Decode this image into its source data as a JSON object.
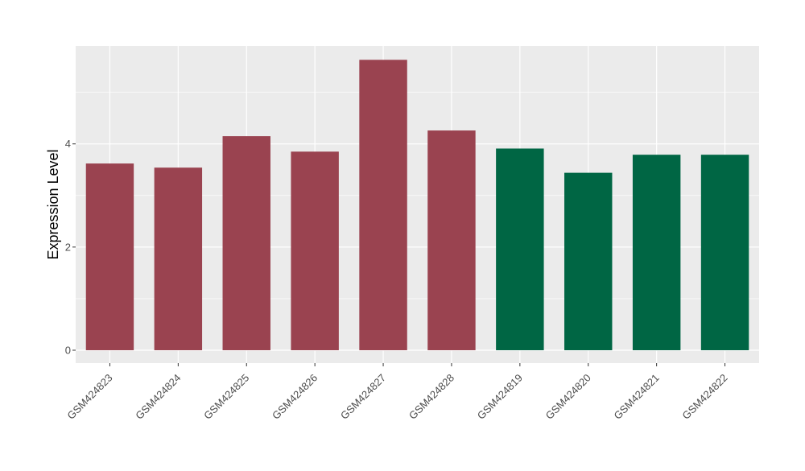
{
  "chart_data": {
    "type": "bar",
    "title": "",
    "xlabel": "",
    "ylabel": "Expression Level",
    "categories": [
      "GSM424823",
      "GSM424824",
      "GSM424825",
      "GSM424826",
      "GSM424827",
      "GSM424828",
      "GSM424819",
      "GSM424820",
      "GSM424821",
      "GSM424822"
    ],
    "values": [
      3.62,
      3.54,
      4.15,
      3.85,
      5.63,
      4.26,
      3.91,
      3.44,
      3.79,
      3.79
    ],
    "bar_colors": [
      "#9a4350",
      "#9a4350",
      "#9a4350",
      "#9a4350",
      "#9a4350",
      "#9a4350",
      "#006644",
      "#006644",
      "#006644",
      "#006644"
    ],
    "ylim": [
      -0.25,
      5.9
    ],
    "yticks": [
      0,
      2,
      4
    ],
    "grid": true,
    "panel_background": "#ebebeb",
    "grid_color": "#ffffff"
  }
}
